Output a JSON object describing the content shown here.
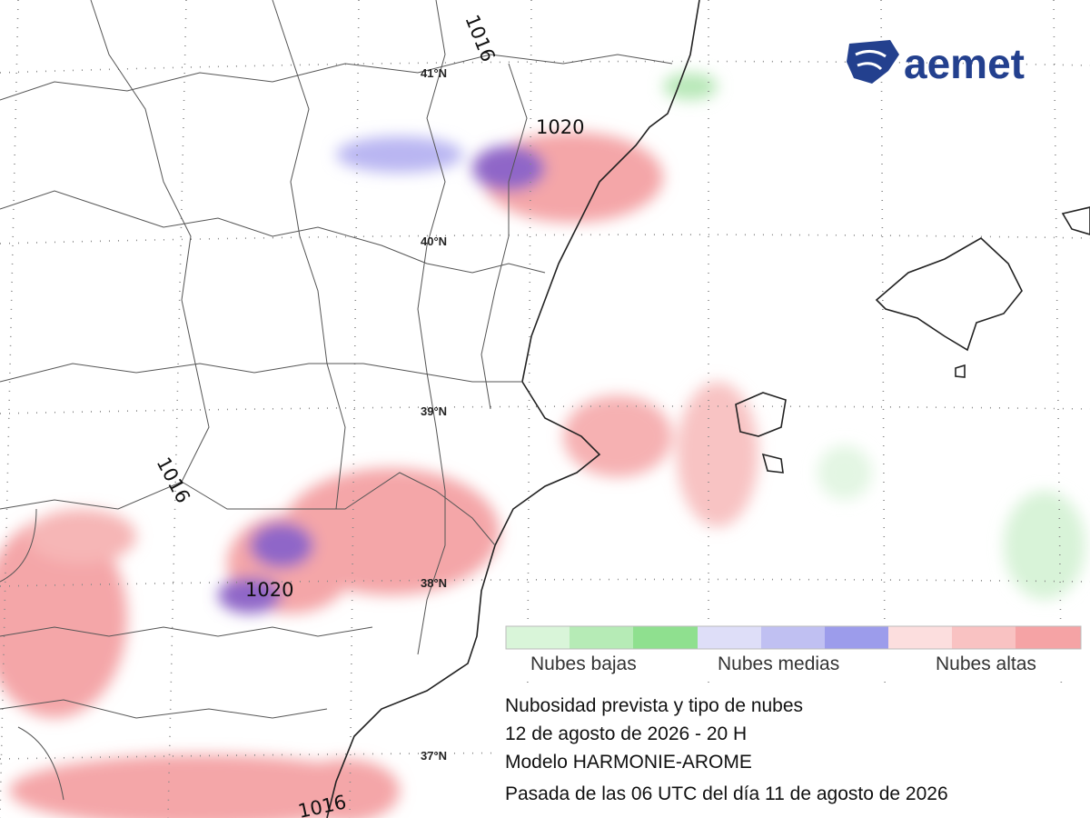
{
  "logo": "aemet",
  "latitude_labels": [
    "41°N",
    "40°N",
    "39°N",
    "38°N",
    "37°N"
  ],
  "isobar_labels": [
    "1016",
    "1020",
    "1016",
    "1020",
    "1016"
  ],
  "legend": {
    "items": [
      "Nubes bajas",
      "Nubes medias",
      "Nubes altas"
    ]
  },
  "caption": [
    "Nubosidad prevista y tipo de nubes",
    "12 de agosto de 2026 - 20 H",
    "Modelo HARMONIE-AROME",
    "Pasada de las 06 UTC del día 11 de agosto de 2026"
  ]
}
